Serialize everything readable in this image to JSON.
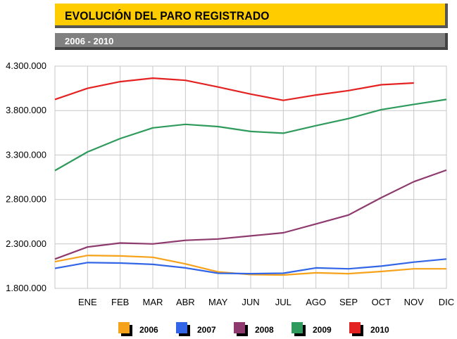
{
  "header": {
    "title": "EVOLUCIÓN DEL PARO REGISTRADO",
    "subtitle": "2006 - 2010"
  },
  "chart_data": {
    "type": "line",
    "title": "EVOLUCIÓN DEL PARO REGISTRADO",
    "subtitle": "2006 - 2010",
    "categories": [
      "",
      "ENE",
      "FEB",
      "MAR",
      "ABR",
      "MAY",
      "JUN",
      "JUL",
      "AGO",
      "SEP",
      "OCT",
      "NOV",
      "DIC"
    ],
    "ylim": [
      1800000,
      4300000
    ],
    "yticks": [
      1800000,
      2300000,
      2800000,
      3300000,
      3800000,
      4300000
    ],
    "ytick_labels": [
      "1.800.000",
      "2.300.000",
      "2.800.000",
      "3.300.000",
      "3.800.000",
      "4.300.000"
    ],
    "grid": true,
    "legend": "bottom",
    "series": [
      {
        "name": "2006",
        "color": "#F7A21B",
        "values": [
          2100000,
          2170000,
          2165000,
          2150000,
          2075000,
          1985000,
          1955000,
          1950000,
          1975000,
          1965000,
          1990000,
          2020000,
          2020000
        ]
      },
      {
        "name": "2007",
        "color": "#3366E6",
        "values": [
          2025000,
          2090000,
          2085000,
          2070000,
          2030000,
          1970000,
          1965000,
          1970000,
          2030000,
          2020000,
          2050000,
          2095000,
          2130000
        ]
      },
      {
        "name": "2008",
        "color": "#8E3A6E",
        "values": [
          2130000,
          2265000,
          2310000,
          2300000,
          2340000,
          2355000,
          2390000,
          2425000,
          2525000,
          2625000,
          2820000,
          3000000,
          3130000
        ]
      },
      {
        "name": "2009",
        "color": "#2E9B5C",
        "values": [
          3125000,
          3335000,
          3485000,
          3605000,
          3645000,
          3620000,
          3565000,
          3545000,
          3630000,
          3710000,
          3810000,
          3870000,
          3925000
        ]
      },
      {
        "name": "2010",
        "color": "#E52222",
        "values": [
          3925000,
          4050000,
          4125000,
          4165000,
          4140000,
          4065000,
          3985000,
          3915000,
          3975000,
          4025000,
          4090000,
          4110000,
          null
        ]
      }
    ]
  }
}
